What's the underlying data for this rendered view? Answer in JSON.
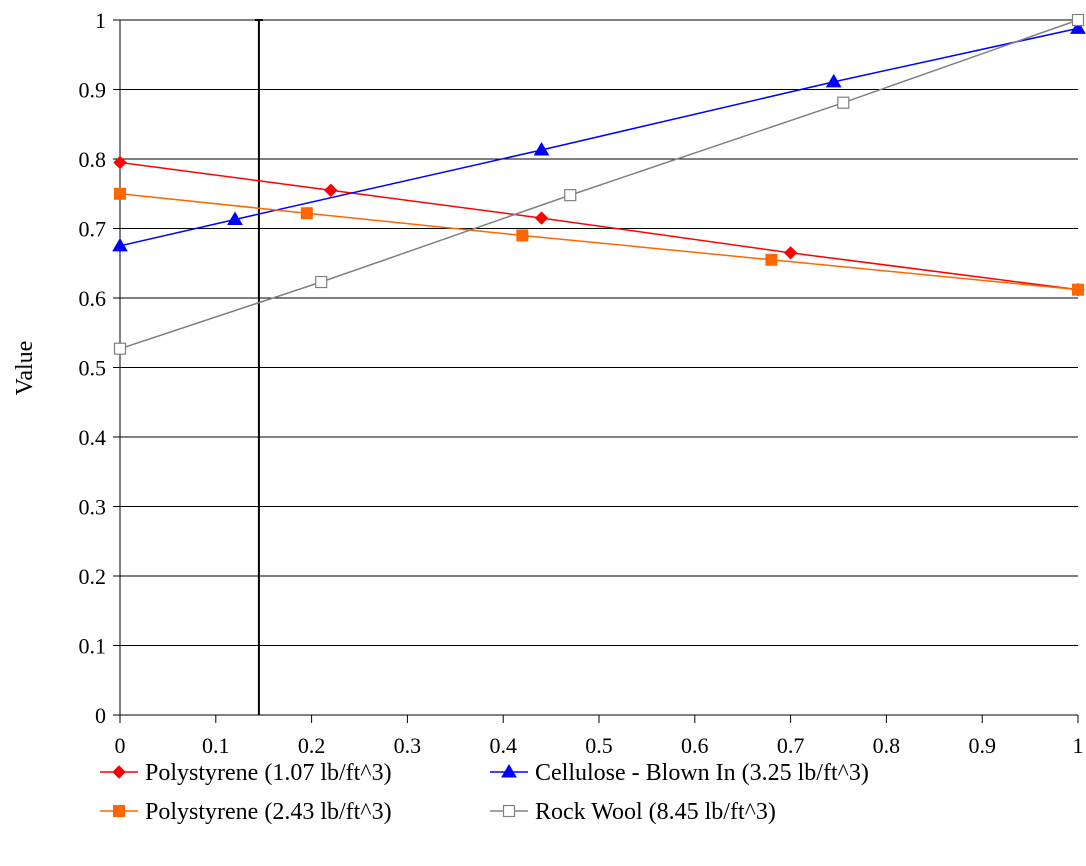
{
  "chart_data": {
    "type": "line",
    "title": "",
    "xlabel": "",
    "ylabel": "Value",
    "xlim": [
      0,
      1
    ],
    "ylim": [
      0,
      1
    ],
    "x_ticks": [
      "0",
      "0.1",
      "0.2",
      "0.3",
      "0.4",
      "0.5",
      "0.6",
      "0.7",
      "0.8",
      "0.9",
      "1"
    ],
    "y_ticks": [
      "0",
      "0.1",
      "0.2",
      "0.3",
      "0.4",
      "0.5",
      "0.6",
      "0.7",
      "0.8",
      "0.9",
      "1"
    ],
    "grid": "horizontal",
    "legend_position": "bottom",
    "reference_line_x": 0.145,
    "series": [
      {
        "name": "Polystyrene (1.07 lb/ft^3)",
        "color": "#ff0000",
        "marker": "diamond-filled",
        "x": [
          0,
          0.22,
          0.44,
          0.7,
          1
        ],
        "y": [
          0.795,
          0.755,
          0.715,
          0.665,
          0.612
        ]
      },
      {
        "name": "Cellulose - Blown In (3.25 lb/ft^3)",
        "color": "#0000ff",
        "marker": "triangle-filled",
        "x": [
          0,
          0.12,
          0.44,
          0.745,
          1
        ],
        "y": [
          0.675,
          0.713,
          0.813,
          0.911,
          0.988
        ]
      },
      {
        "name": "Polystyrene (2.43 lb/ft^3)",
        "color": "#ff6600",
        "marker": "square-filled",
        "x": [
          0,
          0.195,
          0.42,
          0.68,
          1
        ],
        "y": [
          0.75,
          0.722,
          0.69,
          0.655,
          0.612
        ]
      },
      {
        "name": "Rock Wool (8.45 lb/ft^3)",
        "color": "#808080",
        "marker": "square-open",
        "x": [
          0,
          0.21,
          0.47,
          0.755,
          1
        ],
        "y": [
          0.527,
          0.623,
          0.748,
          0.881,
          1.0
        ]
      }
    ]
  }
}
